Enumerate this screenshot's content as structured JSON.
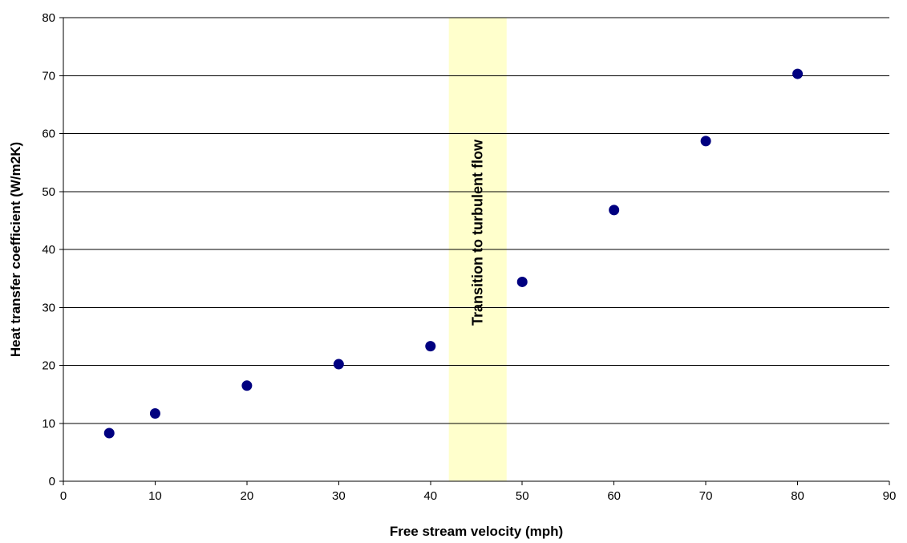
{
  "chart_data": {
    "type": "scatter",
    "xlabel": "Free stream velocity (mph)",
    "ylabel": "Heat transfer coefficient (W/m2K)",
    "xlim": [
      0,
      90
    ],
    "ylim": [
      0,
      80
    ],
    "x_ticks": [
      0,
      10,
      20,
      30,
      40,
      50,
      60,
      70,
      80,
      90
    ],
    "y_ticks": [
      0,
      10,
      20,
      30,
      40,
      50,
      60,
      70,
      80
    ],
    "grid": "horizontal",
    "legend": "none",
    "series": [
      {
        "x": [
          5,
          10,
          20,
          30,
          40,
          50,
          60,
          70,
          80
        ],
        "y": [
          8.3,
          11.7,
          16.5,
          20.2,
          23.3,
          34.4,
          46.8,
          58.7,
          70.3
        ],
        "color": "#000080"
      }
    ],
    "annotation": {
      "text": "Transition to turbulent flow",
      "x_range": [
        42,
        48.3
      ],
      "color": "#ffffcc"
    }
  }
}
